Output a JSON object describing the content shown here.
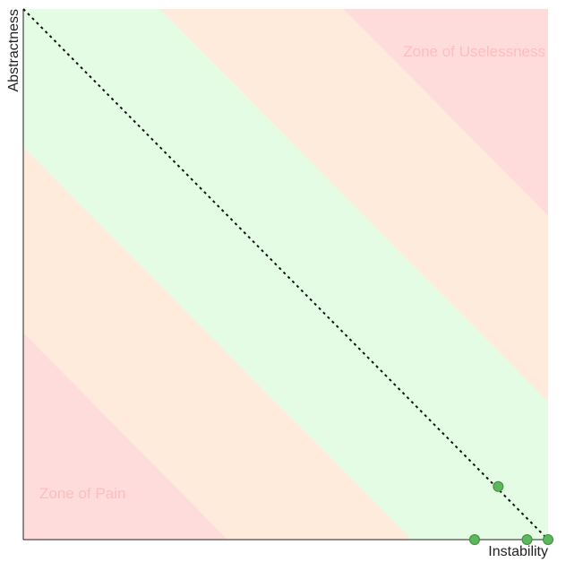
{
  "chart_data": {
    "type": "scatter",
    "title": "",
    "xlabel": "Instability",
    "ylabel": "Abstractness",
    "xlim": [
      0,
      1
    ],
    "ylim": [
      0,
      1
    ],
    "grid": false,
    "main_sequence": {
      "from": [
        0,
        1
      ],
      "to": [
        1,
        0
      ],
      "style": "dotted"
    },
    "zones": [
      {
        "name": "Zone of Pain",
        "color": "#ffdcdc"
      },
      {
        "name": "Zone of Uselessness",
        "color": "#ffdcdc"
      }
    ],
    "band_colors": {
      "main": "#e4fce4",
      "middle": "#ffebdb",
      "outer": "#ffdcdc"
    },
    "band_offsets": [
      0.26,
      0.61
    ],
    "points_color": "#5cb85c",
    "points": [
      {
        "x": 0.905,
        "y": 0.1
      },
      {
        "x": 0.86,
        "y": 0.0
      },
      {
        "x": 0.96,
        "y": 0.0
      },
      {
        "x": 1.0,
        "y": 0.0
      }
    ]
  }
}
